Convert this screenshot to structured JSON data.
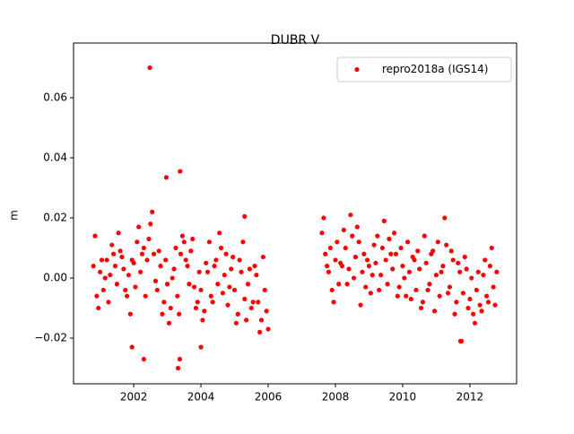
{
  "chart_data": {
    "type": "scatter",
    "title": "DUBR V",
    "y_label": "m",
    "xlim": [
      2000.21,
      2013.39
    ],
    "xticks": [
      2002,
      2004,
      2006,
      2008,
      2010,
      2012
    ],
    "ylim": [
      -0.0352,
      0.0782
    ],
    "yticks": [
      {
        "value": -0.02,
        "label": "−0.02"
      },
      {
        "value": 0,
        "label": "0.00"
      },
      0.02,
      0.04,
      0.06
    ],
    "legend": "upper right",
    "series": [
      {
        "name": "repro2018a (IGS14)",
        "color": "#ff0000",
        "x": [
          2000.8,
          2000.9,
          2001,
          2001.1,
          2001.2,
          2001.3,
          2001.4,
          2001.5,
          2001.6,
          2001.7,
          2001.8,
          2001.9,
          2002,
          2002.1,
          2002.2,
          2002.3,
          2002.4,
          2002.5,
          2002.6,
          2002.7,
          2002.8,
          2002.9,
          2003,
          2003.1,
          2003.2,
          2003.3,
          2003.4,
          2003.5,
          2003.6,
          2003.7,
          2003.8,
          2003.9,
          2004,
          2004.1,
          2004.2,
          2004.3,
          2004.4,
          2004.5,
          2004.6,
          2004.7,
          2004.8,
          2004.9,
          2005,
          2005.1,
          2005.2,
          2005.3,
          2005.4,
          2005.5,
          2005.6,
          2005.7,
          2005.8,
          2005.9,
          2006,
          2000.85,
          2000.95,
          2001.05,
          2001.15,
          2001.25,
          2001.35,
          2001.45,
          2001.55,
          2001.65,
          2001.75,
          2001.85,
          2001.95,
          2002.05,
          2002.15,
          2002.25,
          2002.35,
          2002.45,
          2002.55,
          2002.65,
          2002.75,
          2002.85,
          2002.95,
          2003.05,
          2003.15,
          2003.25,
          2003.35,
          2003.45,
          2003.55,
          2003.65,
          2003.75,
          2003.85,
          2003.95,
          2004.05,
          2004.15,
          2004.25,
          2004.35,
          2004.45,
          2004.55,
          2004.65,
          2004.75,
          2004.85,
          2004.95,
          2005.05,
          2005.15,
          2005.25,
          2005.35,
          2005.45,
          2005.55,
          2005.65,
          2005.75,
          2005.85,
          2005.95,
          2007.6,
          2007.7,
          2007.8,
          2007.9,
          2008,
          2008.1,
          2008.2,
          2008.3,
          2008.4,
          2008.5,
          2008.6,
          2008.7,
          2008.8,
          2008.9,
          2009,
          2009.1,
          2009.2,
          2009.3,
          2009.4,
          2009.5,
          2009.6,
          2009.7,
          2009.8,
          2009.9,
          2010,
          2010.1,
          2010.2,
          2010.3,
          2010.4,
          2010.5,
          2010.6,
          2010.7,
          2010.8,
          2010.9,
          2011,
          2011.1,
          2011.2,
          2011.3,
          2011.4,
          2011.5,
          2011.6,
          2011.7,
          2011.8,
          2011.9,
          2012,
          2012.1,
          2012.2,
          2012.3,
          2012.4,
          2012.5,
          2012.6,
          2012.7,
          2012.8,
          2007.65,
          2007.75,
          2007.85,
          2007.95,
          2008.05,
          2008.15,
          2008.25,
          2008.35,
          2008.45,
          2008.55,
          2008.65,
          2008.75,
          2008.85,
          2008.95,
          2009.05,
          2009.15,
          2009.25,
          2009.35,
          2009.45,
          2009.55,
          2009.65,
          2009.75,
          2009.85,
          2009.95,
          2010.05,
          2010.15,
          2010.25,
          2010.35,
          2010.45,
          2010.55,
          2010.65,
          2010.75,
          2010.85,
          2010.95,
          2011.05,
          2011.15,
          2011.25,
          2011.35,
          2011.45,
          2011.55,
          2011.65,
          2011.75,
          2011.85,
          2011.95,
          2012.05,
          2012.15,
          2012.25,
          2012.35,
          2012.45,
          2012.55,
          2012.65,
          2012.75,
          2002.48,
          2002.97,
          2003.38,
          2005.3,
          2002.3,
          2003.32,
          2003.37,
          2004.0,
          2001.95,
          2011.72
        ],
        "values": [
          0.004,
          -0.006,
          0.002,
          -0.004,
          0.006,
          0.001,
          0.008,
          -0.002,
          0.009,
          0.003,
          -0.006,
          -0.012,
          0.005,
          0.012,
          0.002,
          0.01,
          0.006,
          0.018,
          0.008,
          -0.004,
          0.004,
          -0.008,
          -0.002,
          -0.01,
          0.003,
          -0.006,
          0.008,
          0.012,
          0.004,
          0.009,
          -0.003,
          -0.008,
          -0.004,
          -0.011,
          0.002,
          -0.006,
          0.004,
          -0.002,
          0.01,
          0.001,
          -0.009,
          0.003,
          -0.004,
          -0.012,
          0.002,
          -0.007,
          -0.002,
          -0.01,
          0.004,
          -0.008,
          -0.014,
          -0.004,
          -0.017,
          0.014,
          -0.01,
          0.006,
          0.0,
          -0.008,
          0.011,
          0.004,
          0.015,
          0.007,
          -0.004,
          0.001,
          0.006,
          -0.003,
          0.017,
          0.008,
          -0.006,
          0.013,
          0.022,
          -0.001,
          0.009,
          -0.012,
          0.006,
          -0.015,
          0.0,
          0.01,
          -0.012,
          0.014,
          0.006,
          -0.002,
          0.013,
          -0.01,
          0.002,
          -0.014,
          0.005,
          0.012,
          -0.008,
          0.006,
          0.015,
          -0.005,
          0.008,
          -0.003,
          0.007,
          -0.015,
          0.006,
          0.012,
          -0.014,
          0.003,
          -0.008,
          0.001,
          -0.018,
          0.007,
          -0.011,
          0.015,
          0.008,
          0.002,
          -0.004,
          0.006,
          -0.002,
          0.004,
          0.01,
          0.003,
          0.014,
          0.007,
          0.012,
          0.002,
          -0.003,
          0.004,
          0.001,
          0.005,
          -0.004,
          0.01,
          0.006,
          0.013,
          0.003,
          0.008,
          -0.003,
          0.004,
          -0.006,
          0.002,
          0.007,
          -0.004,
          0.003,
          -0.008,
          0.005,
          -0.002,
          0.009,
          0.001,
          -0.006,
          0.004,
          0.011,
          -0.003,
          0.006,
          -0.008,
          0.002,
          -0.005,
          0.003,
          -0.007,
          -0.012,
          -0.004,
          -0.009,
          0.001,
          -0.006,
          0.004,
          -0.003,
          0.002,
          0.02,
          0.004,
          0.01,
          -0.008,
          0.012,
          0.005,
          0.016,
          -0.002,
          0.021,
          0.0,
          0.017,
          -0.009,
          0.008,
          0.006,
          -0.005,
          0.011,
          0.014,
          0.001,
          0.019,
          -0.002,
          0.008,
          0.015,
          -0.006,
          0.01,
          0.0,
          0.012,
          -0.007,
          0.006,
          0.009,
          -0.01,
          0.014,
          -0.004,
          0.008,
          -0.011,
          0.012,
          0.002,
          0.02,
          -0.005,
          0.009,
          -0.012,
          0.005,
          -0.021,
          0.007,
          -0.01,
          0.0,
          -0.015,
          0.002,
          -0.011,
          0.006,
          -0.008,
          0.01,
          -0.009,
          0.07,
          0.0335,
          0.0355,
          0.0205,
          -0.027,
          -0.03,
          -0.027,
          -0.023,
          -0.023,
          -0.021
        ]
      }
    ]
  }
}
